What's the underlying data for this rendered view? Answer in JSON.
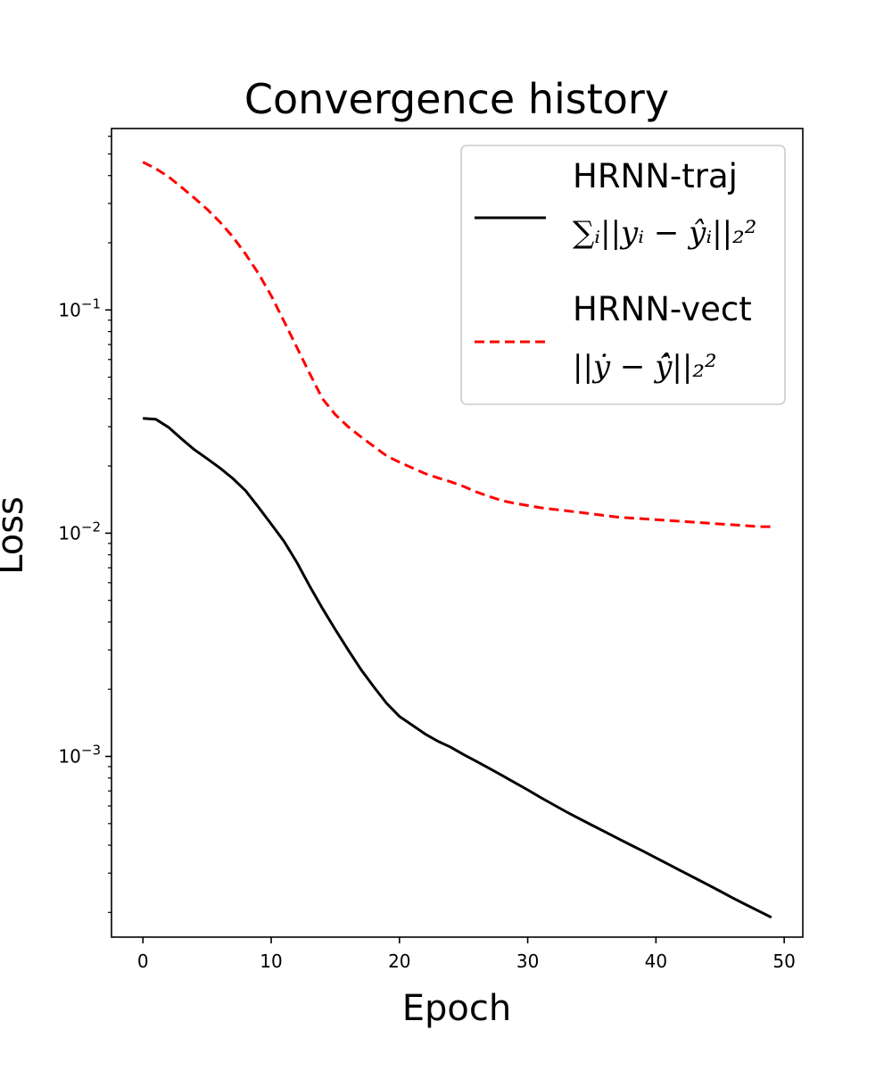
{
  "chart_data": {
    "type": "line",
    "title": "Convergence history",
    "xlabel": "Epoch",
    "ylabel": "Loss",
    "yscale": "log",
    "xlim": [
      -2.45,
      51.45
    ],
    "ylim": [
      0.000155,
      0.65
    ],
    "xticks": [
      0,
      10,
      20,
      30,
      40,
      50
    ],
    "yticks": [
      {
        "value": 0.001,
        "base": "10",
        "exp": "−3"
      },
      {
        "value": 0.01,
        "base": "10",
        "exp": "−2"
      },
      {
        "value": 0.1,
        "base": "10",
        "exp": "−1"
      }
    ],
    "grid": false,
    "legend_position": "upper-right",
    "series": [
      {
        "name": "HRNN-traj",
        "legend_formula": "∑ᵢ||yᵢ − ŷᵢ||₂²",
        "color": "#000000",
        "style": "solid",
        "x": [
          0,
          1,
          2,
          3,
          4,
          5,
          6,
          7,
          8,
          9,
          10,
          11,
          12,
          13,
          14,
          15,
          16,
          17,
          18,
          19,
          20,
          21,
          22,
          23,
          24,
          25,
          26,
          27,
          28,
          29,
          30,
          31,
          32,
          33,
          34,
          35,
          36,
          37,
          38,
          39,
          40,
          41,
          42,
          43,
          44,
          45,
          46,
          47,
          48,
          49
        ],
        "y": [
          0.0327,
          0.0324,
          0.0298,
          0.0265,
          0.0237,
          0.0216,
          0.0196,
          0.0176,
          0.0155,
          0.0131,
          0.011,
          0.0092,
          0.0074,
          0.0058,
          0.0046,
          0.0037,
          0.003,
          0.00245,
          0.00205,
          0.00173,
          0.00151,
          0.00138,
          0.00126,
          0.00117,
          0.0011,
          0.00102,
          0.00095,
          0.000885,
          0.000822,
          0.000763,
          0.000708,
          0.000655,
          0.000608,
          0.000565,
          0.000527,
          0.000492,
          0.00046,
          0.00043,
          0.000402,
          0.000376,
          0.000351,
          0.000328,
          0.000306,
          0.000286,
          0.000267,
          0.000249,
          0.000232,
          0.000217,
          0.000203,
          0.00019
        ]
      },
      {
        "name": "HRNN-vect",
        "legend_formula": "||ẏ − ŷ̇||₂²",
        "color": "#ff0000",
        "style": "dashed",
        "x": [
          0,
          1,
          2,
          3,
          4,
          5,
          6,
          7,
          8,
          9,
          10,
          11,
          12,
          13,
          14,
          15,
          16,
          17,
          18,
          19,
          20,
          21,
          22,
          23,
          24,
          25,
          26,
          27,
          28,
          29,
          30,
          31,
          32,
          33,
          34,
          35,
          36,
          37,
          38,
          39,
          40,
          41,
          42,
          43,
          44,
          45,
          46,
          47,
          48,
          49
        ],
        "y": [
          0.46,
          0.43,
          0.395,
          0.355,
          0.318,
          0.283,
          0.248,
          0.213,
          0.178,
          0.146,
          0.116,
          0.089,
          0.068,
          0.052,
          0.04,
          0.034,
          0.03,
          0.027,
          0.0245,
          0.0222,
          0.0208,
          0.0196,
          0.0185,
          0.0177,
          0.017,
          0.0162,
          0.0153,
          0.0146,
          0.014,
          0.0136,
          0.0133,
          0.013,
          0.0128,
          0.0126,
          0.0124,
          0.0122,
          0.012,
          0.0118,
          0.0117,
          0.0116,
          0.0115,
          0.0114,
          0.0113,
          0.0112,
          0.0111,
          0.011,
          0.0109,
          0.0108,
          0.0107,
          0.0107
        ]
      }
    ]
  }
}
